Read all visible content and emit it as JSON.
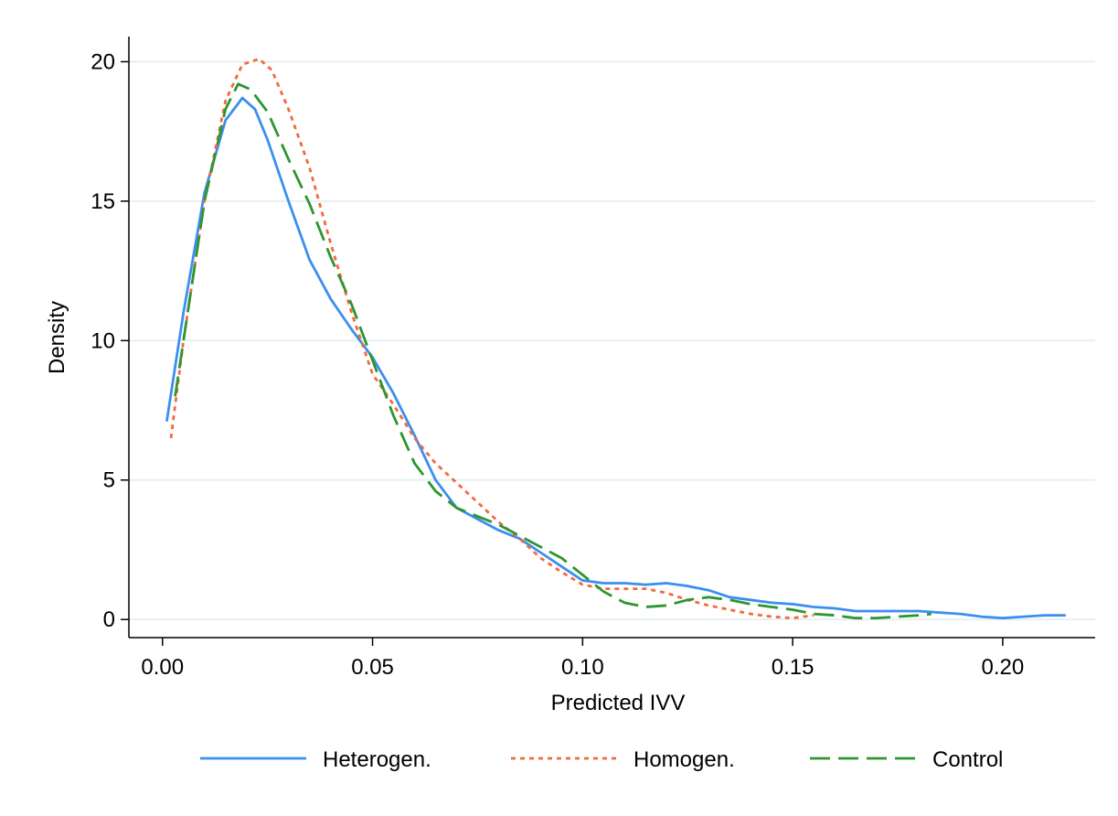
{
  "chart_data": {
    "type": "line",
    "title": "",
    "xlabel": "Predicted IVV",
    "ylabel": "Density",
    "xlim": [
      -0.008,
      0.222
    ],
    "ylim": [
      -0.65,
      20.9
    ],
    "grid": true,
    "legend_position": "bottom",
    "x_ticks": [
      {
        "value": 0.0,
        "label": "0.00"
      },
      {
        "value": 0.05,
        "label": "0.05"
      },
      {
        "value": 0.1,
        "label": "0.10"
      },
      {
        "value": 0.15,
        "label": "0.15"
      },
      {
        "value": 0.2,
        "label": "0.20"
      }
    ],
    "y_ticks": [
      {
        "value": 0,
        "label": "0"
      },
      {
        "value": 5,
        "label": "5"
      },
      {
        "value": 10,
        "label": "10"
      },
      {
        "value": 15,
        "label": "15"
      },
      {
        "value": 20,
        "label": "20"
      }
    ],
    "series": [
      {
        "name": "Heterogen.",
        "color": "#3a8ff0",
        "dash": "solid",
        "points": [
          [
            0.001,
            7.1
          ],
          [
            0.005,
            11.0
          ],
          [
            0.01,
            15.3
          ],
          [
            0.015,
            17.9
          ],
          [
            0.019,
            18.7
          ],
          [
            0.022,
            18.3
          ],
          [
            0.025,
            17.2
          ],
          [
            0.03,
            15.0
          ],
          [
            0.035,
            12.9
          ],
          [
            0.04,
            11.5
          ],
          [
            0.045,
            10.4
          ],
          [
            0.05,
            9.4
          ],
          [
            0.055,
            8.1
          ],
          [
            0.06,
            6.6
          ],
          [
            0.065,
            5.0
          ],
          [
            0.07,
            4.0
          ],
          [
            0.075,
            3.6
          ],
          [
            0.08,
            3.2
          ],
          [
            0.085,
            2.9
          ],
          [
            0.09,
            2.4
          ],
          [
            0.095,
            1.9
          ],
          [
            0.1,
            1.4
          ],
          [
            0.105,
            1.3
          ],
          [
            0.11,
            1.3
          ],
          [
            0.115,
            1.25
          ],
          [
            0.12,
            1.3
          ],
          [
            0.125,
            1.2
          ],
          [
            0.13,
            1.05
          ],
          [
            0.135,
            0.8
          ],
          [
            0.14,
            0.7
          ],
          [
            0.145,
            0.6
          ],
          [
            0.15,
            0.55
          ],
          [
            0.155,
            0.45
          ],
          [
            0.16,
            0.4
          ],
          [
            0.165,
            0.3
          ],
          [
            0.17,
            0.3
          ],
          [
            0.175,
            0.3
          ],
          [
            0.18,
            0.3
          ],
          [
            0.185,
            0.25
          ],
          [
            0.19,
            0.2
          ],
          [
            0.195,
            0.1
          ],
          [
            0.2,
            0.05
          ],
          [
            0.205,
            0.1
          ],
          [
            0.21,
            0.15
          ],
          [
            0.215,
            0.15
          ]
        ]
      },
      {
        "name": "Homogen.",
        "color": "#f4693c",
        "dash": "dotted",
        "points": [
          [
            0.002,
            6.5
          ],
          [
            0.005,
            10.0
          ],
          [
            0.01,
            15.0
          ],
          [
            0.015,
            18.6
          ],
          [
            0.019,
            19.9
          ],
          [
            0.023,
            20.1
          ],
          [
            0.026,
            19.7
          ],
          [
            0.03,
            18.3
          ],
          [
            0.035,
            16.2
          ],
          [
            0.04,
            13.5
          ],
          [
            0.045,
            11.0
          ],
          [
            0.05,
            8.8
          ],
          [
            0.055,
            7.7
          ],
          [
            0.06,
            6.5
          ],
          [
            0.065,
            5.6
          ],
          [
            0.07,
            4.9
          ],
          [
            0.075,
            4.2
          ],
          [
            0.08,
            3.5
          ],
          [
            0.085,
            2.9
          ],
          [
            0.09,
            2.2
          ],
          [
            0.095,
            1.7
          ],
          [
            0.1,
            1.25
          ],
          [
            0.105,
            1.1
          ],
          [
            0.11,
            1.1
          ],
          [
            0.115,
            1.1
          ],
          [
            0.12,
            0.95
          ],
          [
            0.125,
            0.7
          ],
          [
            0.13,
            0.5
          ],
          [
            0.135,
            0.35
          ],
          [
            0.14,
            0.2
          ],
          [
            0.145,
            0.1
          ],
          [
            0.15,
            0.05
          ],
          [
            0.155,
            0.15
          ]
        ]
      },
      {
        "name": "Control",
        "color": "#2e9530",
        "dash": "dashed",
        "points": [
          [
            0.003,
            8.0
          ],
          [
            0.006,
            11.0
          ],
          [
            0.01,
            15.0
          ],
          [
            0.015,
            18.3
          ],
          [
            0.018,
            19.2
          ],
          [
            0.021,
            19.0
          ],
          [
            0.025,
            18.2
          ],
          [
            0.03,
            16.5
          ],
          [
            0.035,
            14.9
          ],
          [
            0.04,
            13.0
          ],
          [
            0.045,
            11.3
          ],
          [
            0.05,
            9.3
          ],
          [
            0.055,
            7.3
          ],
          [
            0.06,
            5.6
          ],
          [
            0.065,
            4.6
          ],
          [
            0.07,
            4.0
          ],
          [
            0.075,
            3.7
          ],
          [
            0.08,
            3.4
          ],
          [
            0.085,
            3.0
          ],
          [
            0.09,
            2.6
          ],
          [
            0.095,
            2.2
          ],
          [
            0.1,
            1.6
          ],
          [
            0.105,
            1.0
          ],
          [
            0.11,
            0.6
          ],
          [
            0.115,
            0.45
          ],
          [
            0.12,
            0.5
          ],
          [
            0.125,
            0.7
          ],
          [
            0.13,
            0.8
          ],
          [
            0.135,
            0.7
          ],
          [
            0.14,
            0.55
          ],
          [
            0.145,
            0.45
          ],
          [
            0.15,
            0.35
          ],
          [
            0.155,
            0.2
          ],
          [
            0.16,
            0.15
          ],
          [
            0.165,
            0.05
          ],
          [
            0.17,
            0.05
          ],
          [
            0.175,
            0.1
          ],
          [
            0.18,
            0.15
          ],
          [
            0.183,
            0.2
          ]
        ]
      }
    ]
  }
}
